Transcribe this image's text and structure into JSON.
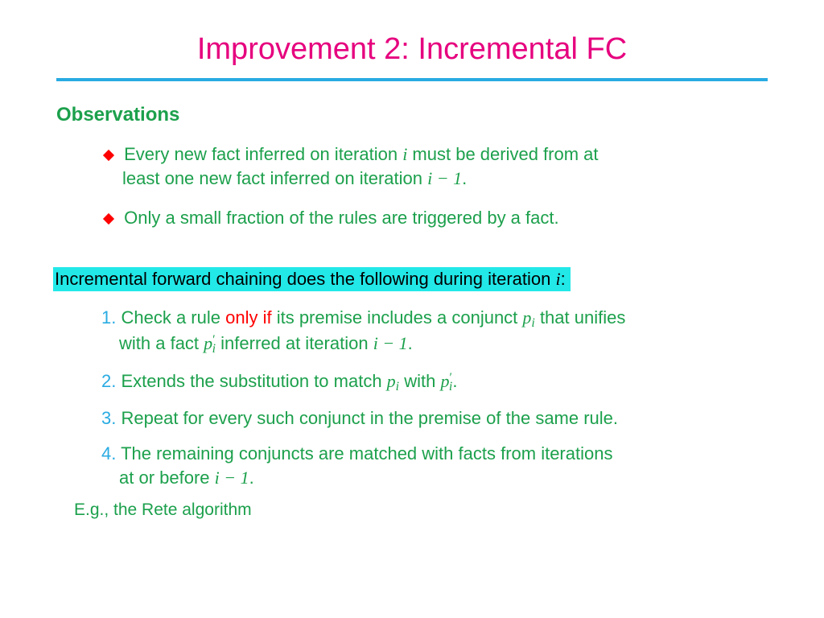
{
  "colors": {
    "title": "#e6007e",
    "rule": "#29abe2",
    "green": "#1ca04c",
    "red": "#ff0000",
    "black": "#000000",
    "highlight_bg": "#22e8e8",
    "stepnum": "#29abe2"
  },
  "fonts": {
    "title_size": 38,
    "subhead_size": 24,
    "body_size": 22,
    "footnote_size": 21
  },
  "title": "Improvement 2: Incremental FC",
  "subhead": "Observations",
  "obs": [
    {
      "pre": "Every new fact inferred on iteration ",
      "var1": "i",
      "mid": " must be derived from at",
      "line2_pre": "least one new fact inferred on iteration ",
      "expr": "i − 1",
      "post": "."
    },
    {
      "text": "Only a small fraction of the rules are triggered by a fact."
    }
  ],
  "highlight": {
    "pre": "Incremental forward chaining does the following during iteration ",
    "var": "i",
    "post": ":"
  },
  "steps": [
    {
      "num": "1.",
      "pre": " Check a rule ",
      "red": "only if",
      "mid": " its premise includes a conjunct ",
      "p_var": "p",
      "p_sub": "i",
      "tail": " that unifies",
      "line2_pre": "with a fact ",
      "p2_var": "p",
      "p2_sup": "′",
      "p2_sub": "i",
      "line2_mid": " inferred at iteration ",
      "expr": "i − 1",
      "line2_post": "."
    },
    {
      "num": "2.",
      "pre": " Extends the substitution to match ",
      "p_var": "p",
      "p_sub": "i",
      "mid": " with ",
      "p2_var": "p",
      "p2_sup": "′",
      "p2_sub": "i",
      "post": "."
    },
    {
      "num": "3.",
      "text": " Repeat for every such conjunct in the premise of the same rule."
    },
    {
      "num": "4.",
      "pre": " The remaining conjuncts are matched with facts from iterations",
      "line2_pre": "at or before ",
      "expr": "i − 1",
      "line2_post": "."
    }
  ],
  "footnote": "E.g., the Rete algorithm"
}
